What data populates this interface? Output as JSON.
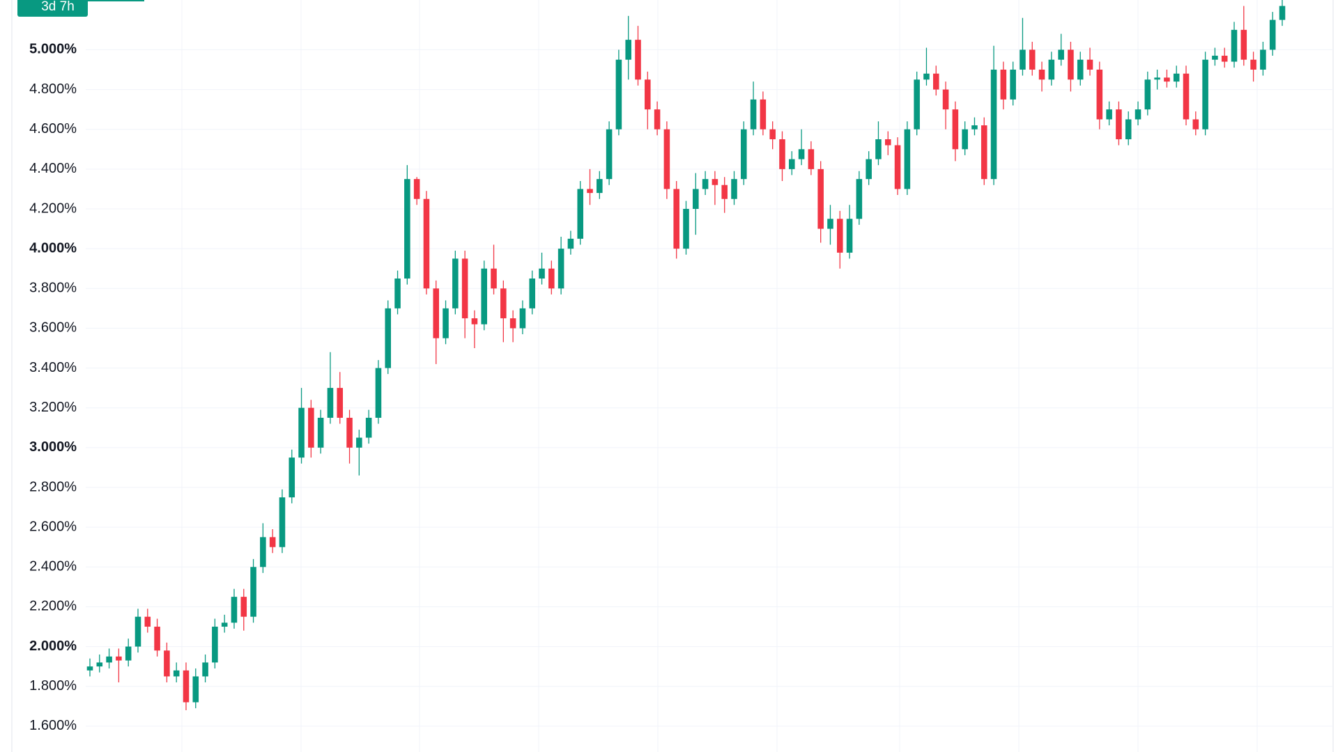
{
  "chart_data": {
    "type": "candlestick",
    "badge": "3d 7h",
    "up_color": "#089981",
    "down_color": "#f23645",
    "badge_color": "#089981",
    "ylim": [
      1.47,
      5.25
    ],
    "yticks": [
      {
        "value": 1.6,
        "label": "1.600%"
      },
      {
        "value": 1.8,
        "label": "1.800%"
      },
      {
        "value": 2.0,
        "label": "2.000%"
      },
      {
        "value": 2.2,
        "label": "2.200%"
      },
      {
        "value": 2.4,
        "label": "2.400%"
      },
      {
        "value": 2.6,
        "label": "2.600%"
      },
      {
        "value": 2.8,
        "label": "2.800%"
      },
      {
        "value": 3.0,
        "label": "3.000%"
      },
      {
        "value": 3.2,
        "label": "3.200%"
      },
      {
        "value": 3.4,
        "label": "3.400%"
      },
      {
        "value": 3.6,
        "label": "3.600%"
      },
      {
        "value": 3.8,
        "label": "3.800%"
      },
      {
        "value": 4.0,
        "label": "4.000%"
      },
      {
        "value": 4.2,
        "label": "4.200%"
      },
      {
        "value": 4.4,
        "label": "4.400%"
      },
      {
        "value": 4.6,
        "label": "4.600%"
      },
      {
        "value": 4.8,
        "label": "4.800%"
      },
      {
        "value": 5.0,
        "label": "5.000%"
      }
    ],
    "grid": true,
    "open": [
      1.88,
      1.9,
      1.92,
      1.95,
      1.93,
      2.0,
      2.15,
      2.1,
      1.98,
      1.85,
      1.88,
      1.72,
      1.85,
      1.92,
      2.1,
      2.12,
      2.25,
      2.15,
      2.4,
      2.55,
      2.5,
      2.75,
      2.95,
      3.2,
      3.0,
      3.15,
      3.3,
      3.15,
      3.0,
      3.05,
      3.15,
      3.4,
      3.7,
      3.85,
      4.35,
      4.25,
      3.8,
      3.55,
      3.7,
      3.95,
      3.65,
      3.62,
      3.9,
      3.8,
      3.65,
      3.6,
      3.7,
      3.85,
      3.9,
      3.8,
      4.0,
      4.05,
      4.3,
      4.28,
      4.35,
      4.6,
      4.95,
      5.05,
      4.85,
      4.7,
      4.6,
      4.3,
      4.0,
      4.2,
      4.3,
      4.35,
      4.32,
      4.25,
      4.35,
      4.6,
      4.75,
      4.6,
      4.55,
      4.4,
      4.45,
      4.5,
      4.4,
      4.1,
      4.15,
      3.98,
      4.15,
      4.35,
      4.45,
      4.55,
      4.52,
      4.3,
      4.6,
      4.85,
      4.88,
      4.8,
      4.7,
      4.5,
      4.6,
      4.62,
      4.35,
      4.9,
      4.75,
      4.9,
      5.0,
      4.9,
      4.85,
      4.95,
      5.0,
      4.85,
      4.95,
      4.9,
      4.65,
      4.7,
      4.55,
      4.65,
      4.7,
      4.85,
      4.86,
      4.84,
      4.88,
      4.65,
      4.6,
      4.95,
      4.97,
      4.94,
      5.1,
      4.95,
      4.9,
      5.0,
      5.15
    ],
    "high": [
      1.94,
      1.96,
      1.99,
      1.99,
      2.04,
      2.19,
      2.19,
      2.14,
      2.02,
      1.92,
      1.92,
      1.89,
      1.96,
      2.14,
      2.16,
      2.29,
      2.29,
      2.44,
      2.62,
      2.59,
      2.79,
      2.99,
      3.3,
      3.24,
      3.19,
      3.48,
      3.38,
      3.19,
      3.09,
      3.19,
      3.44,
      3.74,
      3.89,
      4.42,
      4.36,
      4.29,
      3.84,
      3.74,
      3.99,
      3.99,
      3.69,
      3.94,
      4.02,
      3.84,
      3.69,
      3.74,
      3.89,
      3.98,
      3.94,
      4.06,
      4.09,
      4.34,
      4.4,
      4.39,
      4.64,
      5.0,
      5.17,
      5.12,
      4.89,
      4.74,
      4.64,
      4.34,
      4.24,
      4.38,
      4.39,
      4.39,
      4.36,
      4.39,
      4.64,
      4.84,
      4.79,
      4.64,
      4.59,
      4.49,
      4.6,
      4.54,
      4.44,
      4.22,
      4.19,
      4.22,
      4.39,
      4.49,
      4.64,
      4.59,
      4.56,
      4.64,
      4.89,
      5.01,
      4.92,
      4.84,
      4.74,
      4.64,
      4.66,
      4.66,
      5.02,
      4.94,
      4.94,
      5.16,
      5.04,
      4.94,
      4.99,
      5.08,
      5.04,
      4.99,
      5.01,
      4.94,
      4.74,
      4.74,
      4.69,
      4.74,
      4.89,
      4.9,
      4.9,
      4.92,
      4.92,
      4.69,
      4.99,
      5.01,
      5.01,
      5.14,
      5.22,
      4.99,
      5.04,
      5.19,
      5.25
    ],
    "low": [
      1.85,
      1.87,
      1.89,
      1.82,
      1.9,
      1.97,
      2.07,
      1.95,
      1.82,
      1.82,
      1.68,
      1.69,
      1.82,
      1.89,
      2.07,
      2.09,
      2.08,
      2.12,
      2.37,
      2.47,
      2.47,
      2.72,
      2.92,
      2.95,
      2.97,
      3.12,
      3.12,
      2.92,
      2.86,
      3.02,
      3.12,
      3.37,
      3.67,
      3.82,
      4.22,
      3.77,
      3.42,
      3.52,
      3.67,
      3.55,
      3.5,
      3.59,
      3.77,
      3.53,
      3.53,
      3.57,
      3.67,
      3.82,
      3.77,
      3.77,
      3.97,
      4.02,
      4.22,
      4.25,
      4.32,
      4.57,
      4.85,
      4.82,
      4.6,
      4.57,
      4.25,
      3.95,
      3.97,
      4.07,
      4.27,
      4.22,
      4.18,
      4.22,
      4.32,
      4.57,
      4.57,
      4.5,
      4.34,
      4.37,
      4.42,
      4.37,
      4.03,
      4.02,
      3.9,
      3.95,
      4.12,
      4.32,
      4.42,
      4.47,
      4.27,
      4.27,
      4.57,
      4.82,
      4.77,
      4.6,
      4.44,
      4.47,
      4.57,
      4.32,
      4.32,
      4.7,
      4.72,
      4.87,
      4.87,
      4.79,
      4.82,
      4.92,
      4.79,
      4.82,
      4.87,
      4.6,
      4.62,
      4.52,
      4.52,
      4.62,
      4.67,
      4.8,
      4.81,
      4.81,
      4.62,
      4.57,
      4.57,
      4.92,
      4.91,
      4.91,
      4.92,
      4.84,
      4.87,
      4.97,
      5.12
    ],
    "close": [
      1.9,
      1.92,
      1.95,
      1.93,
      2.0,
      2.15,
      2.1,
      1.98,
      1.85,
      1.88,
      1.72,
      1.85,
      1.92,
      2.1,
      2.12,
      2.25,
      2.15,
      2.4,
      2.55,
      2.5,
      2.75,
      2.95,
      3.2,
      3.0,
      3.15,
      3.3,
      3.15,
      3.0,
      3.05,
      3.15,
      3.4,
      3.7,
      3.85,
      4.35,
      4.25,
      3.8,
      3.55,
      3.7,
      3.95,
      3.65,
      3.62,
      3.9,
      3.8,
      3.65,
      3.6,
      3.7,
      3.85,
      3.9,
      3.8,
      4.0,
      4.05,
      4.3,
      4.28,
      4.35,
      4.6,
      4.95,
      5.05,
      4.85,
      4.7,
      4.6,
      4.3,
      4.0,
      4.2,
      4.3,
      4.35,
      4.32,
      4.25,
      4.35,
      4.6,
      4.75,
      4.6,
      4.55,
      4.4,
      4.45,
      4.5,
      4.4,
      4.1,
      4.15,
      3.98,
      4.15,
      4.35,
      4.45,
      4.55,
      4.52,
      4.3,
      4.6,
      4.85,
      4.88,
      4.8,
      4.7,
      4.5,
      4.6,
      4.62,
      4.35,
      4.9,
      4.75,
      4.9,
      5.0,
      4.9,
      4.85,
      4.95,
      5.0,
      4.85,
      4.95,
      4.9,
      4.65,
      4.7,
      4.55,
      4.65,
      4.7,
      4.85,
      4.86,
      4.84,
      4.88,
      4.65,
      4.6,
      4.95,
      4.97,
      4.94,
      5.1,
      4.95,
      4.9,
      5.0,
      5.15,
      5.22
    ]
  }
}
